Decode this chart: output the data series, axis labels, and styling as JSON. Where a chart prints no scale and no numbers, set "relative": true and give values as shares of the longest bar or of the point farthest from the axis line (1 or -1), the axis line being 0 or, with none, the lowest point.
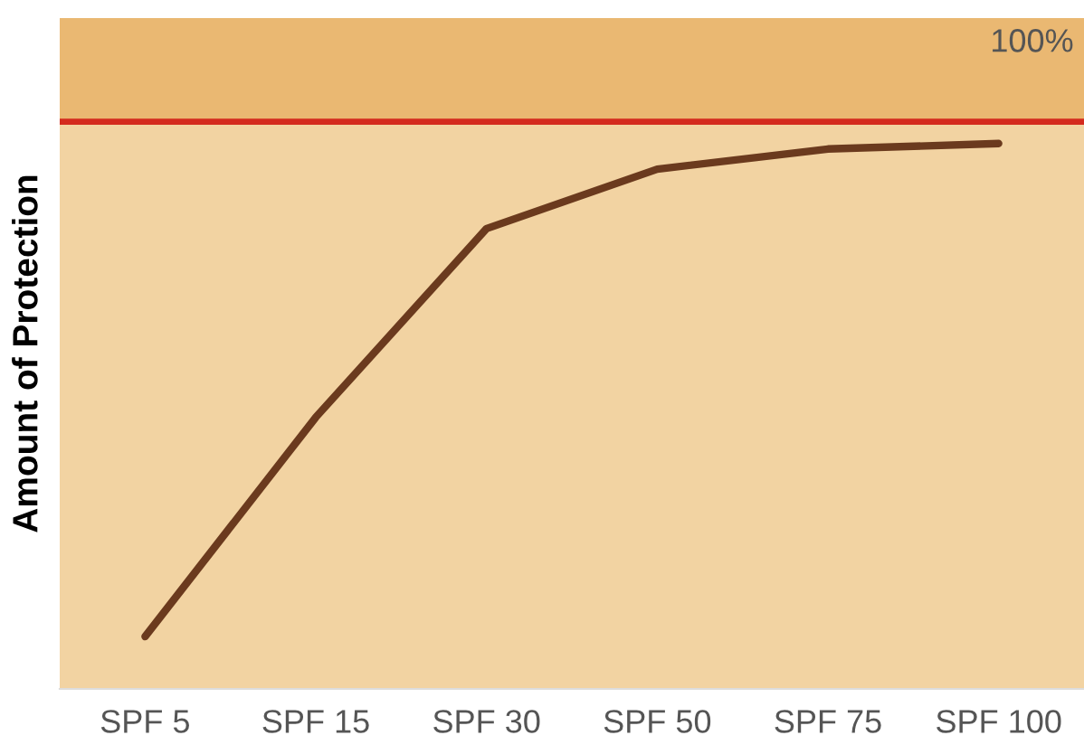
{
  "chart_data": {
    "type": "line",
    "ylabel": "Amount of Protection",
    "categories": [
      "SPF 5",
      "SPF 15",
      "SPF 30",
      "SPF 50",
      "SPF 75",
      "SPF 100"
    ],
    "series": [
      {
        "color": "#6b3a1e",
        "values": [
          0.096,
          0.498,
          0.844,
          0.953,
          0.99,
          1
        ]
      }
    ],
    "relative": true,
    "grid": false,
    "legend": false,
    "marker": "none",
    "line_style": "solid",
    "annotations": [
      "100%"
    ],
    "ref_lines": [
      {
        "axis": "y",
        "value": 1.04,
        "color": "#d42a1e",
        "line_style": "solid"
      }
    ],
    "bands": [
      {
        "axis": "y",
        "from": 1.04,
        "to": 1.23,
        "color": "#eab872"
      }
    ]
  }
}
